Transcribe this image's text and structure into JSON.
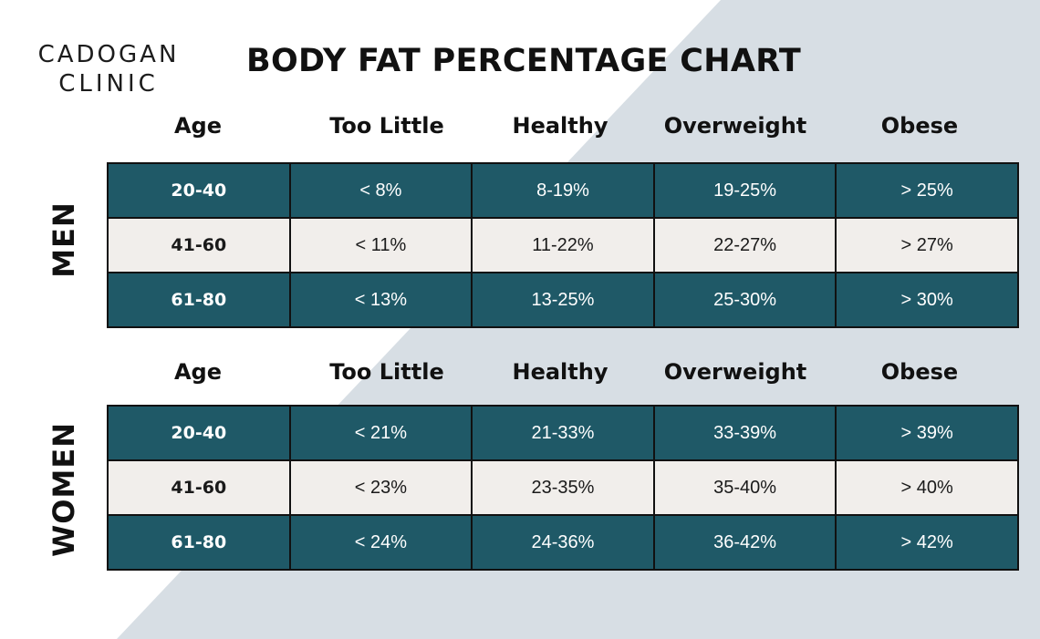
{
  "logo": {
    "line1": "CADOGAN",
    "line2": "CLINIC"
  },
  "colors": {
    "dark_row": "#1f5967",
    "light_row": "#f1eeeb",
    "bg_shape": "#d7dee4"
  },
  "chart_data": {
    "type": "table",
    "title": "BODY FAT PERCENTAGE CHART",
    "columns": [
      "Age",
      "Too Little",
      "Healthy",
      "Overweight",
      "Obese"
    ],
    "groups": [
      {
        "name": "MEN",
        "rows": [
          [
            "20-40",
            "< 8%",
            "8-19%",
            "19-25%",
            "> 25%"
          ],
          [
            "41-60",
            "< 11%",
            "11-22%",
            "22-27%",
            "> 27%"
          ],
          [
            "61-80",
            "< 13%",
            "13-25%",
            "25-30%",
            "> 30%"
          ]
        ]
      },
      {
        "name": "WOMEN",
        "rows": [
          [
            "20-40",
            "< 21%",
            "21-33%",
            "33-39%",
            "> 39%"
          ],
          [
            "41-60",
            "< 23%",
            "23-35%",
            "35-40%",
            "> 40%"
          ],
          [
            "61-80",
            "< 24%",
            "24-36%",
            "36-42%",
            "> 42%"
          ]
        ]
      }
    ]
  }
}
